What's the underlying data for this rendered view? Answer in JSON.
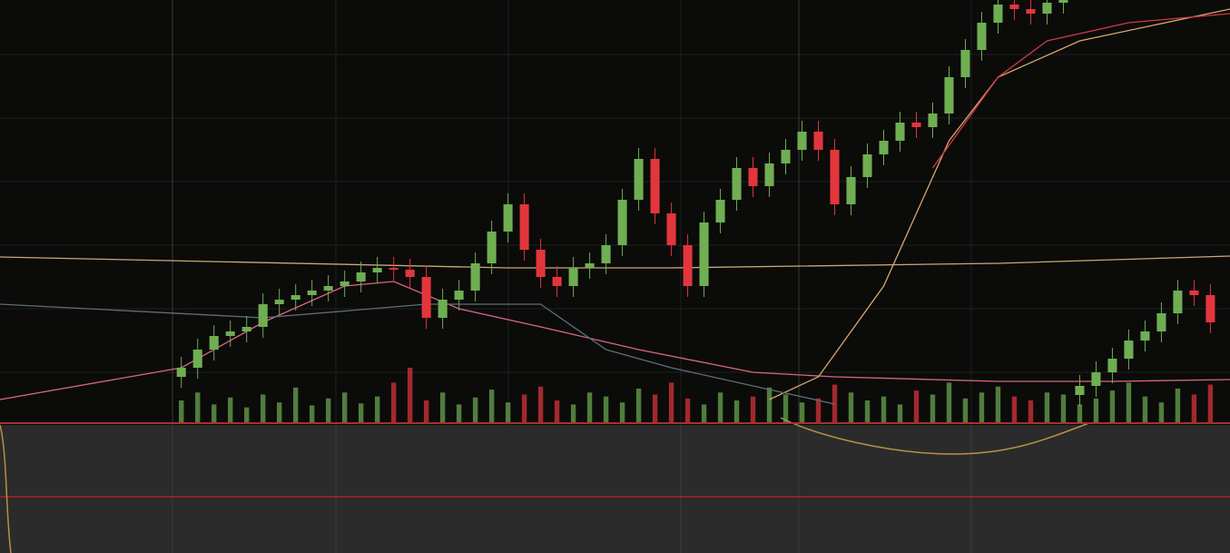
{
  "chart_data": {
    "type": "candlestick",
    "xlim": [
      -11.1,
      64.2
    ],
    "ylim": [
      0,
      465
    ],
    "grid": true,
    "up_color": "#6fae52",
    "down_color": "#e2363c",
    "x": [
      0,
      1,
      2,
      3,
      4,
      5,
      6,
      7,
      8,
      9,
      10,
      11,
      12,
      13,
      14,
      15,
      16,
      17,
      18,
      19,
      20,
      21,
      22,
      23,
      24,
      25,
      26,
      27,
      28,
      29,
      30,
      31,
      32,
      33,
      34,
      35,
      36,
      37,
      38,
      39,
      40,
      41,
      42,
      43,
      44,
      45,
      46,
      47,
      48,
      49,
      50,
      51,
      52,
      53,
      54,
      55,
      56,
      57,
      58,
      59,
      60,
      61,
      62,
      63
    ],
    "open": [
      50,
      60,
      80,
      95,
      100,
      105,
      130,
      135,
      140,
      145,
      150,
      155,
      165,
      170,
      168,
      160,
      115,
      135,
      145,
      175,
      210,
      240,
      190,
      160,
      150,
      170,
      175,
      195,
      245,
      290,
      230,
      195,
      150,
      220,
      245,
      280,
      260,
      285,
      300,
      320,
      300,
      240,
      270,
      295,
      310,
      330,
      325,
      340,
      380,
      410,
      440,
      460,
      455,
      450,
      462,
      30,
      40,
      55,
      70,
      90,
      100,
      120,
      145,
      140
    ],
    "high": [
      72,
      92,
      107,
      112,
      117,
      142,
      147,
      152,
      157,
      162,
      167,
      177,
      182,
      182,
      180,
      172,
      147,
      157,
      187,
      222,
      252,
      252,
      202,
      172,
      182,
      187,
      207,
      257,
      302,
      302,
      242,
      207,
      232,
      257,
      292,
      292,
      297,
      312,
      332,
      332,
      312,
      282,
      307,
      322,
      342,
      342,
      352,
      392,
      422,
      452,
      472,
      472,
      467,
      474,
      477,
      52,
      67,
      82,
      102,
      112,
      132,
      157,
      157,
      152
    ],
    "low": [
      38,
      48,
      68,
      83,
      88,
      93,
      118,
      123,
      128,
      133,
      138,
      143,
      153,
      156,
      148,
      103,
      103,
      123,
      133,
      163,
      198,
      178,
      148,
      138,
      138,
      158,
      163,
      183,
      233,
      218,
      183,
      138,
      138,
      208,
      233,
      248,
      248,
      273,
      288,
      288,
      228,
      228,
      258,
      283,
      298,
      313,
      313,
      328,
      368,
      398,
      428,
      443,
      438,
      438,
      450,
      18,
      28,
      43,
      58,
      78,
      88,
      108,
      128,
      98
    ],
    "close": [
      60,
      80,
      95,
      100,
      105,
      130,
      135,
      140,
      145,
      150,
      155,
      165,
      170,
      168,
      160,
      115,
      135,
      145,
      175,
      210,
      240,
      190,
      160,
      150,
      170,
      175,
      195,
      245,
      290,
      230,
      195,
      150,
      220,
      245,
      280,
      260,
      285,
      300,
      320,
      300,
      240,
      270,
      295,
      310,
      330,
      325,
      340,
      380,
      410,
      440,
      460,
      455,
      450,
      462,
      465,
      40,
      55,
      70,
      90,
      100,
      120,
      145,
      140,
      110
    ],
    "volume": [
      22,
      30,
      18,
      25,
      15,
      28,
      20,
      35,
      17,
      24,
      30,
      19,
      26,
      40,
      55,
      22,
      30,
      18,
      25,
      33,
      20,
      28,
      36,
      22,
      18,
      30,
      26,
      20,
      34,
      28,
      40,
      24,
      18,
      30,
      22,
      26,
      35,
      28,
      20,
      24,
      38,
      30,
      22,
      26,
      18,
      32,
      28,
      40,
      24,
      30,
      36,
      26,
      22,
      30,
      28,
      18,
      24,
      32,
      40,
      26,
      20,
      34,
      28,
      38
    ],
    "lines": [
      {
        "color": "#d9677f",
        "x": [
          -11.1,
          0,
          5,
          10,
          13,
          17,
          22,
          28,
          35,
          40,
          50,
          57,
          64.2
        ],
        "values": [
          25,
          60,
          110,
          150,
          155,
          125,
          105,
          80,
          55,
          50,
          45,
          45,
          47
        ]
      },
      {
        "color": "#c9a77a",
        "x": [
          -11.1,
          20,
          30,
          50,
          64.2
        ],
        "values": [
          182,
          170,
          170,
          175,
          183
        ]
      },
      {
        "color": "#d9a86c",
        "x": [
          36,
          39,
          43,
          47,
          50,
          55,
          64.2
        ],
        "values": [
          25,
          50,
          150,
          310,
          380,
          420,
          455
        ]
      },
      {
        "color": "#d23a46",
        "x": [
          46,
          48,
          50,
          53,
          58,
          64.2
        ],
        "values": [
          280,
          330,
          380,
          420,
          440,
          450
        ]
      },
      {
        "color": "#5c7078",
        "x": [
          -11.1,
          5,
          15,
          22,
          26,
          30,
          35,
          40
        ],
        "values": [
          130,
          115,
          130,
          130,
          80,
          60,
          40,
          20
        ]
      }
    ]
  }
}
